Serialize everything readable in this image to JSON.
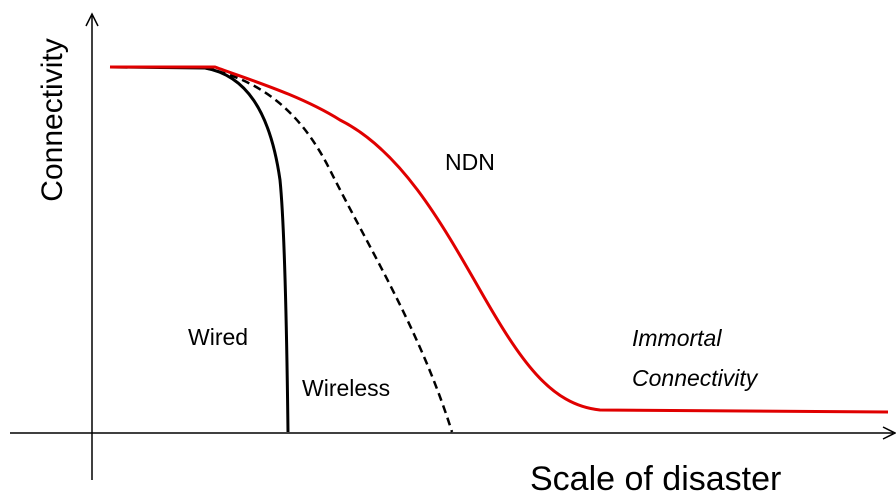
{
  "axes": {
    "y_label": "Connectivity",
    "x_label": "Scale of disaster"
  },
  "curves": [
    {
      "label": "NDN"
    },
    {
      "label": "Wired"
    },
    {
      "label": "Wireless"
    }
  ],
  "annotation": {
    "lines": [
      "Immortal",
      "Connectivity"
    ]
  }
}
